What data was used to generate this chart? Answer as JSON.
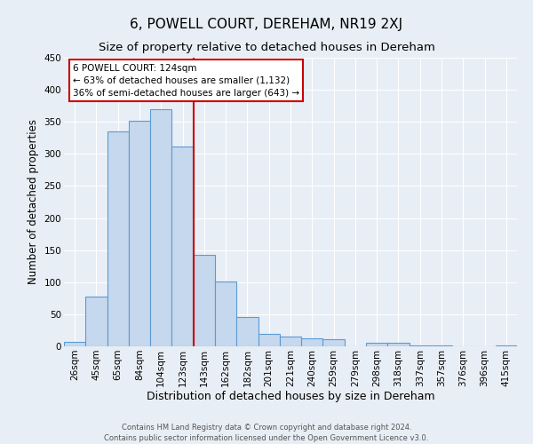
{
  "title": "6, POWELL COURT, DEREHAM, NR19 2XJ",
  "subtitle": "Size of property relative to detached houses in Dereham",
  "xlabel": "Distribution of detached houses by size in Dereham",
  "ylabel": "Number of detached properties",
  "bar_labels": [
    "26sqm",
    "45sqm",
    "65sqm",
    "84sqm",
    "104sqm",
    "123sqm",
    "143sqm",
    "162sqm",
    "182sqm",
    "201sqm",
    "221sqm",
    "240sqm",
    "259sqm",
    "279sqm",
    "298sqm",
    "318sqm",
    "337sqm",
    "357sqm",
    "376sqm",
    "396sqm",
    "415sqm"
  ],
  "bar_values": [
    7,
    77,
    335,
    352,
    370,
    312,
    143,
    101,
    46,
    19,
    15,
    13,
    11,
    0,
    6,
    5,
    2,
    1,
    0,
    0,
    1
  ],
  "bar_color": "#c5d8ed",
  "bar_edge_color": "#5b9bd5",
  "background_color": "#e8eef5",
  "grid_color": "#ffffff",
  "red_line_x": 5.5,
  "annotation_line1": "6 POWELL COURT: 124sqm",
  "annotation_line2": "← 63% of detached houses are smaller (1,132)",
  "annotation_line3": "36% of semi-detached houses are larger (643) →",
  "box_edge_color": "#cc0000",
  "footnote1": "Contains HM Land Registry data © Crown copyright and database right 2024.",
  "footnote2": "Contains public sector information licensed under the Open Government Licence v3.0.",
  "ylim": [
    0,
    450
  ],
  "title_fontsize": 11,
  "subtitle_fontsize": 9.5,
  "tick_fontsize": 7.5,
  "ylabel_fontsize": 8.5,
  "xlabel_fontsize": 9,
  "footnote_fontsize": 6.0
}
